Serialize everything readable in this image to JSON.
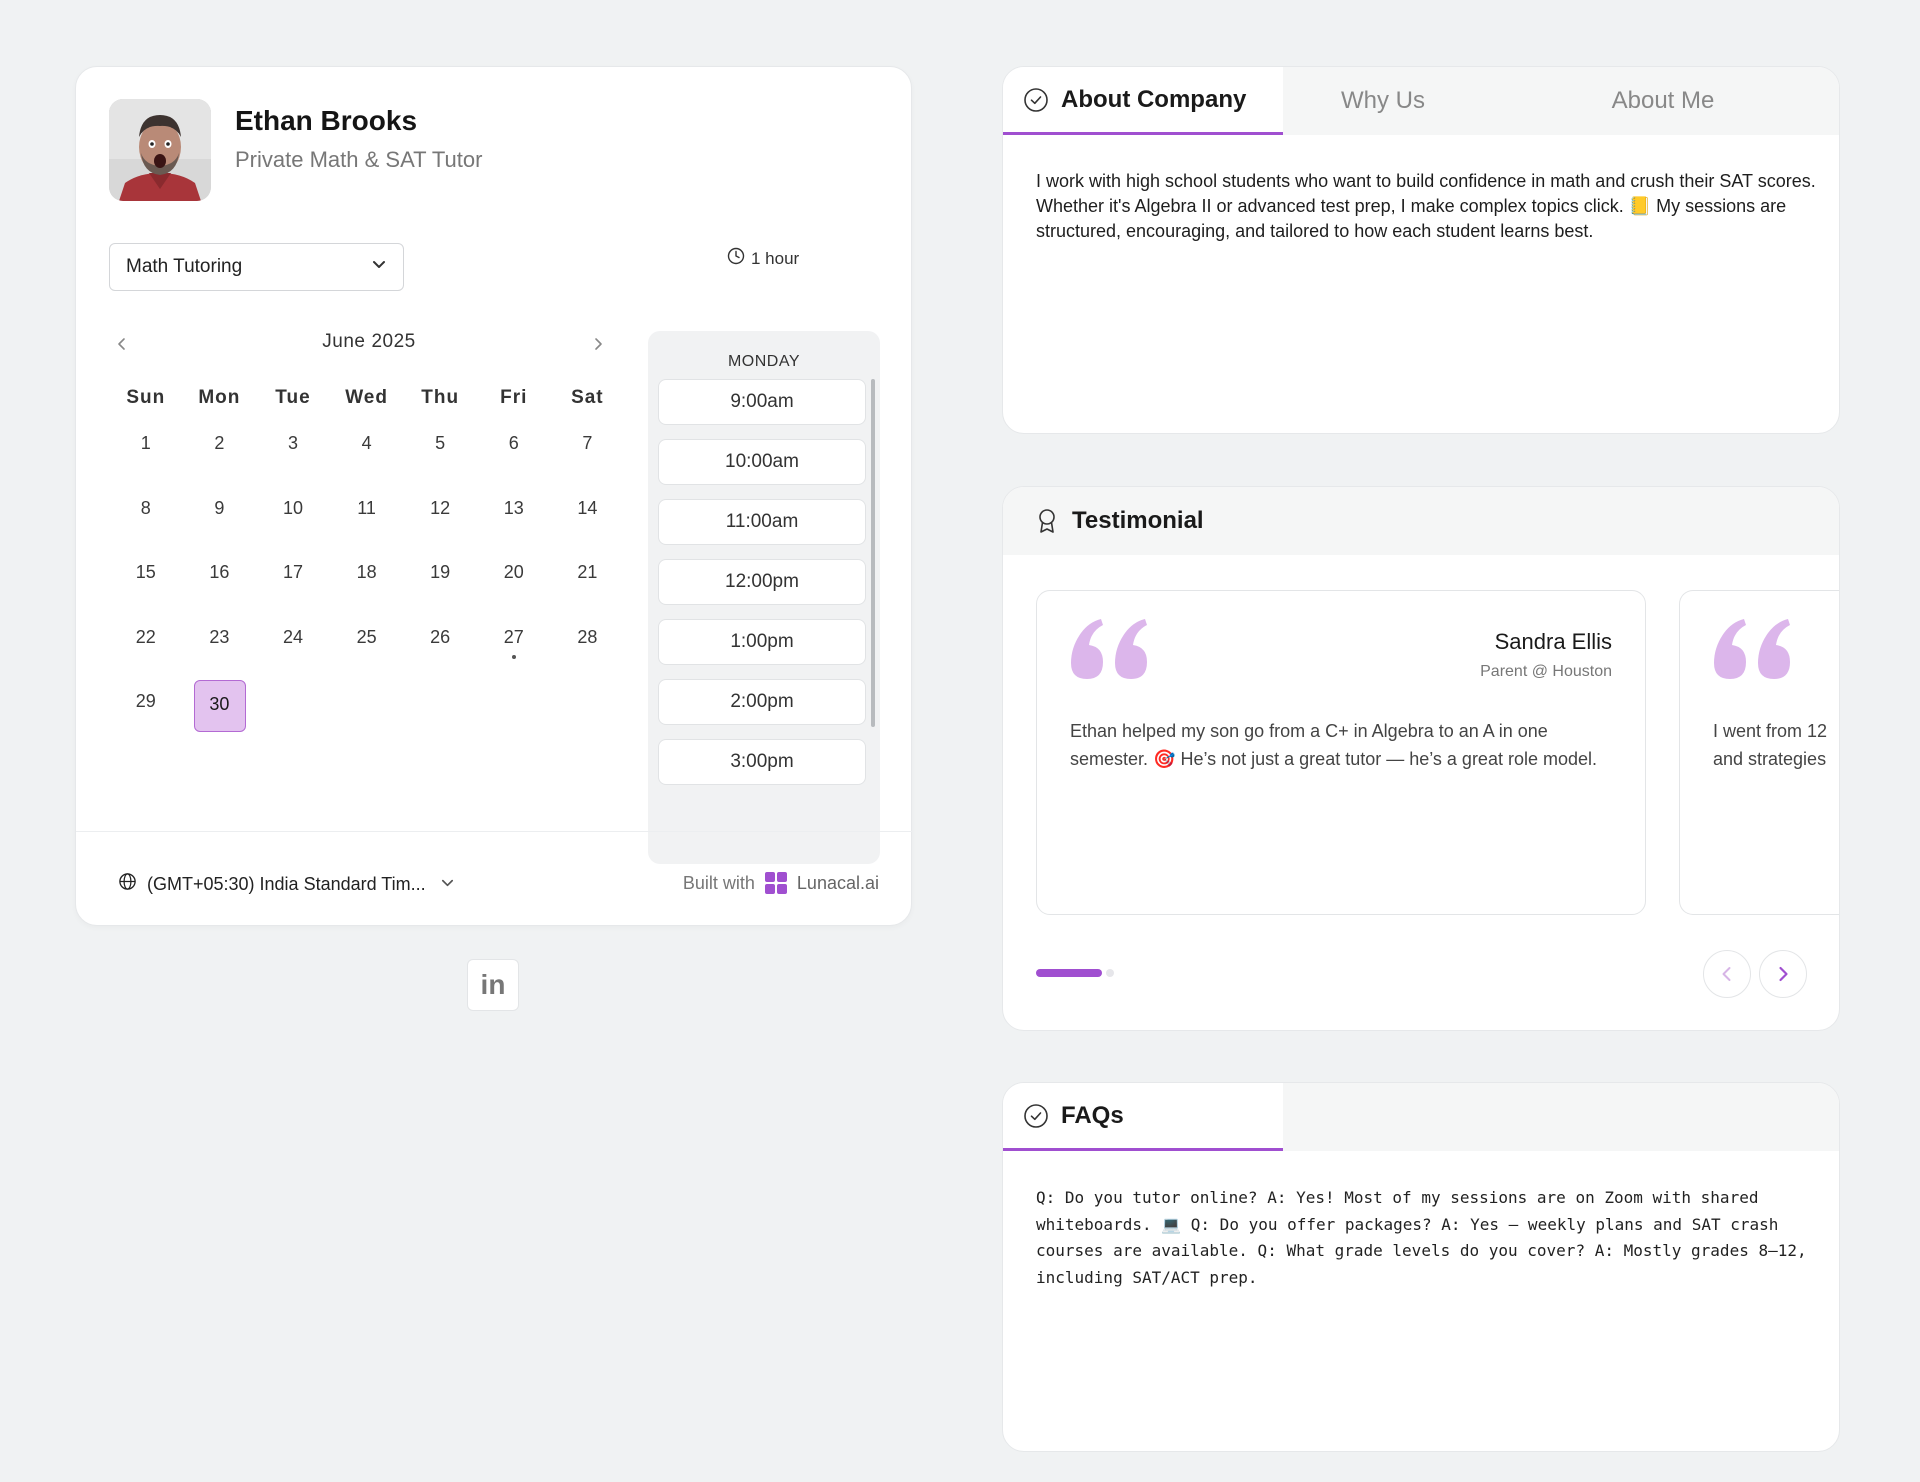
{
  "profile": {
    "name": "Ethan Brooks",
    "subtitle": "Private Math & SAT Tutor"
  },
  "booking": {
    "service_select": {
      "value": "Math Tutoring"
    },
    "duration": "1 hour",
    "calendar": {
      "month": "June",
      "year": "2025",
      "weekdays": [
        "Sun",
        "Mon",
        "Tue",
        "Wed",
        "Thu",
        "Fri",
        "Sat"
      ],
      "days": [
        "1",
        "2",
        "3",
        "4",
        "5",
        "6",
        "7",
        "8",
        "9",
        "10",
        "11",
        "12",
        "13",
        "14",
        "15",
        "16",
        "17",
        "18",
        "19",
        "20",
        "21",
        "22",
        "23",
        "24",
        "25",
        "26",
        "27",
        "28",
        "29",
        "30"
      ],
      "selected_day": "30",
      "marked_day": "27"
    },
    "slots": {
      "title": "MONDAY",
      "times": [
        "9:00am",
        "10:00am",
        "11:00am",
        "12:00pm",
        "1:00pm",
        "2:00pm",
        "3:00pm"
      ]
    },
    "timezone": "(GMT+05:30) India Standard Tim...",
    "built_with": "Built with",
    "brand": "Lunacal.ai"
  },
  "social": {
    "linkedin_label": "in"
  },
  "about_panel": {
    "tabs": [
      {
        "label": "About Company",
        "active": true
      },
      {
        "label": "Why Us",
        "active": false
      },
      {
        "label": "About Me",
        "active": false
      }
    ],
    "text": "I work with high school students who want to build confidence in math and crush their SAT scores. Whether it's Algebra II or advanced test prep, I make complex topics click. 📒 My sessions are structured, encouraging, and tailored to how each student learns best."
  },
  "testimonial_panel": {
    "title": "Testimonial",
    "cards": [
      {
        "name": "Sandra Ellis",
        "role": "Parent @ Houston",
        "text": "Ethan helped my son go from a C+ in Algebra to an A in one semester. 🎯 He’s not just a great tutor — he’s a great role model."
      },
      {
        "name": "",
        "role": "",
        "text": "I went from 12 and strategies"
      }
    ]
  },
  "faq_panel": {
    "tab": "FAQs",
    "text": "Q: Do you tutor online? A: Yes! Most of my sessions are on Zoom with shared whiteboards. 💻 Q: Do you offer packages? A: Yes – weekly plans and SAT crash courses are available. Q: What grade levels do you cover? A: Mostly grades 8–12, including SAT/ACT prep."
  },
  "colors": {
    "accent": "#a04fd0",
    "selected_day_bg": "#e3c3ef",
    "quote": "#dcb6eb"
  },
  "icons": {
    "tab_icon": "check-circle-icon",
    "testimonial_icon": "award-icon",
    "duration_icon": "clock-icon",
    "timezone_icon": "globe-icon"
  }
}
